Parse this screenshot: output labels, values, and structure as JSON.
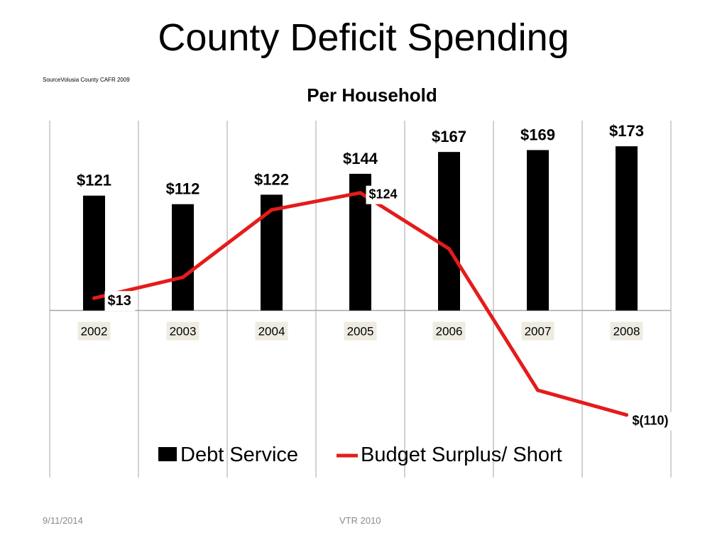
{
  "slide": {
    "title": "County Deficit Spending",
    "source": "SourceVolusia County CAFR 2009"
  },
  "footer": {
    "date": "9/11/2014",
    "center": "VTR 2010"
  },
  "colors": {
    "debt_bar": "#000000",
    "surplus_line": "#e51b1b",
    "grid": "#a6a6a6",
    "category_label_bg": "#eeece1"
  },
  "chart_data": {
    "type": "bar",
    "title": "Per Household",
    "categories": [
      "2002",
      "2003",
      "2004",
      "2005",
      "2006",
      "2007",
      "2008"
    ],
    "series": [
      {
        "name": "Debt Service",
        "type": "bar",
        "values": [
          121,
          112,
          122,
          144,
          167,
          169,
          173
        ],
        "labels": [
          "$121",
          "$112",
          "$122",
          "$144",
          "$167",
          "$169",
          "$173"
        ]
      },
      {
        "name": "Budget Surplus/ Short",
        "type": "line",
        "values": [
          13,
          35,
          106,
          124,
          65,
          -84,
          -110
        ],
        "labels": [
          "$13",
          "",
          "",
          "$124",
          "",
          "",
          "$(110)"
        ]
      }
    ],
    "ylim": [
      -176,
      200
    ],
    "grid": "vertical",
    "legend": "bottom"
  }
}
